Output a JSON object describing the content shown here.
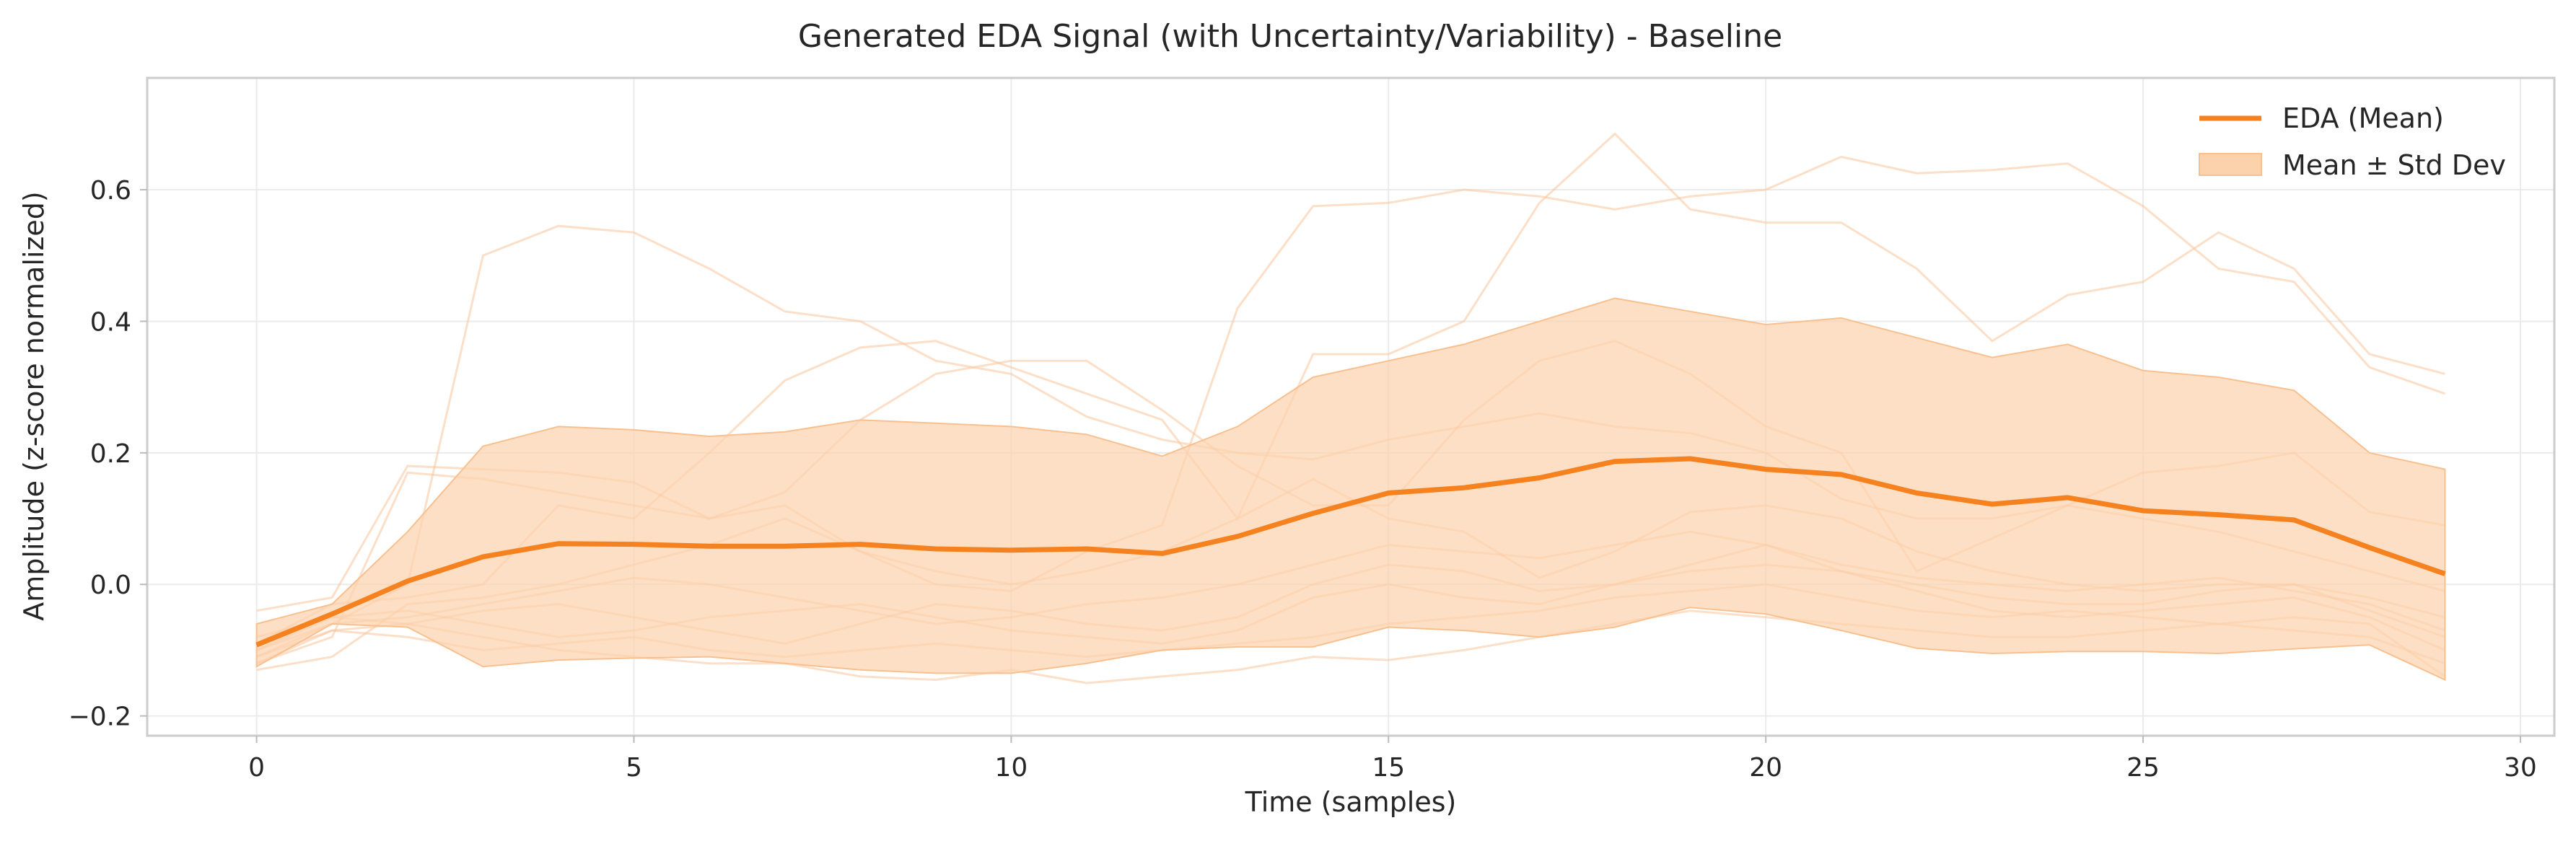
{
  "chart_data": {
    "type": "line",
    "title": "Generated EDA Signal (with Uncertainty/Variability) - Baseline",
    "xlabel": "Time (samples)",
    "ylabel": "Amplitude (z-score normalized)",
    "xlim": [
      -1.45,
      30.45
    ],
    "ylim": [
      -0.23,
      0.77
    ],
    "xticks": [
      0,
      5,
      10,
      15,
      20,
      25,
      30
    ],
    "yticks": [
      -0.2,
      0.0,
      0.2,
      0.4,
      0.6
    ],
    "ytick_labels": [
      "−0.2",
      "0.0",
      "0.2",
      "0.4",
      "0.6"
    ],
    "grid": true,
    "legend_position": "top-right",
    "x": [
      0,
      1,
      2,
      3,
      4,
      5,
      6,
      7,
      8,
      9,
      10,
      11,
      12,
      13,
      14,
      15,
      16,
      17,
      18,
      19,
      20,
      21,
      22,
      23,
      24,
      25,
      26,
      27,
      28,
      29
    ],
    "series": [
      {
        "name": "EDA (Mean)",
        "color": "#f5821f",
        "values": [
          -0.092,
          -0.045,
          0.005,
          0.042,
          0.062,
          0.061,
          0.058,
          0.058,
          0.061,
          0.054,
          0.052,
          0.054,
          0.047,
          0.073,
          0.108,
          0.139,
          0.147,
          0.162,
          0.187,
          0.191,
          0.175,
          0.167,
          0.139,
          0.122,
          0.132,
          0.112,
          0.106,
          0.098,
          0.056,
          0.016
        ]
      }
    ],
    "band": {
      "name": "Mean ± Std Dev",
      "color": "#fcd2ad",
      "upper": [
        -0.06,
        -0.03,
        0.08,
        0.21,
        0.24,
        0.235,
        0.225,
        0.232,
        0.25,
        0.245,
        0.24,
        0.228,
        0.195,
        0.24,
        0.315,
        0.34,
        0.365,
        0.4,
        0.435,
        0.415,
        0.395,
        0.405,
        0.375,
        0.345,
        0.365,
        0.325,
        0.315,
        0.295,
        0.2,
        0.175
      ],
      "lower": [
        -0.125,
        -0.06,
        -0.065,
        -0.125,
        -0.115,
        -0.112,
        -0.11,
        -0.12,
        -0.13,
        -0.135,
        -0.135,
        -0.12,
        -0.1,
        -0.095,
        -0.095,
        -0.065,
        -0.07,
        -0.08,
        -0.065,
        -0.035,
        -0.045,
        -0.07,
        -0.097,
        -0.105,
        -0.102,
        -0.102,
        -0.105,
        -0.098,
        -0.092,
        -0.145
      ]
    },
    "samples": [
      [
        -0.11,
        -0.06,
        0.0,
        0.5,
        0.545,
        0.535,
        0.48,
        0.415,
        0.4,
        0.34,
        0.32,
        0.255,
        0.22,
        0.2,
        0.19,
        0.22,
        0.24,
        0.26,
        0.24,
        0.23,
        0.2,
        0.13,
        0.1,
        0.1,
        0.12,
        0.1,
        0.08,
        0.05,
        0.02,
        -0.01
      ],
      [
        -0.09,
        -0.03,
        -0.02,
        0.0,
        0.12,
        0.1,
        0.2,
        0.31,
        0.36,
        0.37,
        0.33,
        0.29,
        0.25,
        0.1,
        0.35,
        0.35,
        0.4,
        0.58,
        0.685,
        0.57,
        0.55,
        0.55,
        0.48,
        0.37,
        0.44,
        0.46,
        0.535,
        0.48,
        0.35,
        0.32
      ],
      [
        -0.12,
        -0.08,
        0.17,
        0.16,
        0.14,
        0.12,
        0.1,
        0.12,
        0.05,
        0.0,
        -0.01,
        0.05,
        0.09,
        0.42,
        0.575,
        0.58,
        0.6,
        0.59,
        0.57,
        0.59,
        0.6,
        0.65,
        0.625,
        0.63,
        0.64,
        0.575,
        0.48,
        0.46,
        0.33,
        0.29
      ],
      [
        -0.04,
        -0.02,
        0.18,
        0.175,
        0.17,
        0.155,
        0.1,
        0.14,
        0.25,
        0.32,
        0.34,
        0.34,
        0.265,
        0.18,
        0.12,
        0.12,
        0.25,
        0.34,
        0.37,
        0.32,
        0.24,
        0.2,
        0.02,
        0.07,
        0.12,
        0.17,
        0.18,
        0.2,
        0.11,
        0.09
      ],
      [
        -0.13,
        -0.11,
        -0.03,
        -0.02,
        0.0,
        0.03,
        0.06,
        0.1,
        0.05,
        0.02,
        0.0,
        0.02,
        0.05,
        0.1,
        0.16,
        0.1,
        0.08,
        0.01,
        0.05,
        0.11,
        0.12,
        0.1,
        0.05,
        0.02,
        0.0,
        -0.01,
        0.0,
        0.0,
        -0.02,
        -0.05
      ],
      [
        -0.1,
        -0.05,
        -0.06,
        -0.04,
        -0.03,
        -0.05,
        -0.07,
        -0.09,
        -0.06,
        -0.03,
        -0.04,
        -0.06,
        -0.07,
        -0.05,
        0.0,
        0.03,
        0.02,
        -0.01,
        0.0,
        0.02,
        0.03,
        0.02,
        0.0,
        -0.02,
        -0.03,
        -0.03,
        -0.01,
        0.0,
        -0.04,
        -0.08
      ],
      [
        -0.12,
        -0.07,
        -0.06,
        -0.08,
        -0.1,
        -0.11,
        -0.12,
        -0.12,
        -0.14,
        -0.145,
        -0.13,
        -0.15,
        -0.14,
        -0.13,
        -0.11,
        -0.115,
        -0.1,
        -0.08,
        -0.06,
        -0.04,
        -0.05,
        -0.06,
        -0.07,
        -0.08,
        -0.08,
        -0.07,
        -0.06,
        -0.05,
        -0.06,
        -0.14
      ],
      [
        -0.08,
        -0.05,
        -0.04,
        -0.06,
        -0.08,
        -0.07,
        -0.05,
        -0.04,
        -0.03,
        -0.05,
        -0.07,
        -0.08,
        -0.09,
        -0.07,
        -0.02,
        0.0,
        -0.02,
        -0.03,
        0.0,
        0.03,
        0.06,
        0.02,
        -0.01,
        -0.04,
        -0.05,
        -0.04,
        -0.03,
        -0.02,
        -0.05,
        -0.1
      ],
      [
        -0.1,
        -0.06,
        -0.05,
        -0.03,
        -0.01,
        0.01,
        0.0,
        -0.02,
        -0.04,
        -0.06,
        -0.05,
        -0.03,
        -0.02,
        0.0,
        0.03,
        0.06,
        0.05,
        0.04,
        0.06,
        0.08,
        0.06,
        0.03,
        0.01,
        0.0,
        -0.01,
        0.0,
        0.01,
        -0.01,
        -0.03,
        -0.07
      ],
      [
        -0.11,
        -0.07,
        -0.08,
        -0.1,
        -0.09,
        -0.08,
        -0.1,
        -0.11,
        -0.1,
        -0.09,
        -0.1,
        -0.11,
        -0.1,
        -0.09,
        -0.08,
        -0.06,
        -0.05,
        -0.04,
        -0.02,
        -0.01,
        0.0,
        -0.02,
        -0.04,
        -0.05,
        -0.04,
        -0.05,
        -0.06,
        -0.07,
        -0.08,
        -0.12
      ]
    ]
  }
}
